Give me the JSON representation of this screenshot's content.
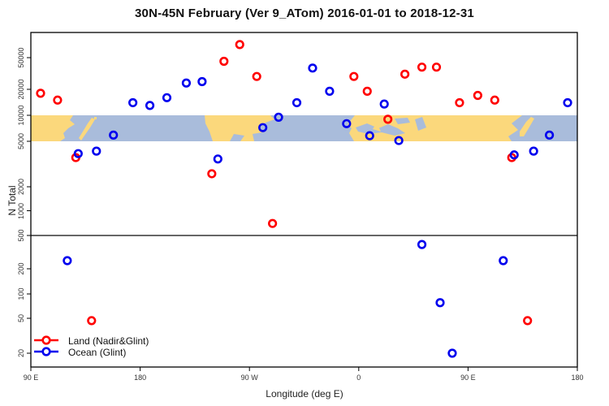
{
  "title": "30N-45N February (Ver 9_ATom)   2016-01-01 to 2018-12-31",
  "chart_data": {
    "type": "scatter",
    "title": "30N-45N February (Ver 9_ATom)   2016-01-01 to 2018-12-31",
    "xlabel": "Longitude (deg E)",
    "ylabel": "N Total",
    "y_scale": "log",
    "x_axis_note": "longitude wraps eastward from 90E around the globe to 180",
    "x_ticks": [
      {
        "value": 90,
        "label": "90 E"
      },
      {
        "value": 180,
        "label": "180"
      },
      {
        "value": 270,
        "label": "90 W"
      },
      {
        "value": 360,
        "label": "0"
      },
      {
        "value": 450,
        "label": "90 E"
      },
      {
        "value": 540,
        "label": "180"
      }
    ],
    "y_ticks": [
      {
        "value": 50000,
        "label": "50000"
      },
      {
        "value": 20000,
        "label": "20000"
      },
      {
        "value": 10000,
        "label": "10000"
      },
      {
        "value": 5000,
        "label": "5000"
      },
      {
        "value": 2000,
        "label": "2000"
      },
      {
        "value": 1000,
        "label": "1000"
      },
      {
        "value": 500,
        "label": "500"
      },
      {
        "value": 200,
        "label": "200"
      },
      {
        "value": 100,
        "label": "100"
      },
      {
        "value": 50,
        "label": "50"
      },
      {
        "value": 20,
        "label": "20"
      }
    ],
    "reference_line_value": 500,
    "map_band": {
      "description": "world-map strip of the 30N-45N latitude band drawn between N=5000 and N=10000",
      "y_min": 5000,
      "y_max": 10000,
      "land_color": "#FBD87C",
      "ocean_color": "#A9BCDB"
    },
    "legend_position": "bottom-left",
    "series": [
      {
        "name": "Land (Nadir&Glint)",
        "color": "#FF0000",
        "points": [
          {
            "x": 98,
            "y": 18000
          },
          {
            "x": 112,
            "y": 15000
          },
          {
            "x": 127,
            "y": 3600
          },
          {
            "x": 140,
            "y": 47
          },
          {
            "x": 239,
            "y": 2600
          },
          {
            "x": 249,
            "y": 45000
          },
          {
            "x": 262,
            "y": 73000
          },
          {
            "x": 276,
            "y": 29000
          },
          {
            "x": 289,
            "y": 700
          },
          {
            "x": 356,
            "y": 29000
          },
          {
            "x": 367,
            "y": 19000
          },
          {
            "x": 384,
            "y": 9000
          },
          {
            "x": 398,
            "y": 31000
          },
          {
            "x": 412,
            "y": 38000
          },
          {
            "x": 424,
            "y": 38000
          },
          {
            "x": 443,
            "y": 14000
          },
          {
            "x": 458,
            "y": 17000
          },
          {
            "x": 472,
            "y": 15000
          },
          {
            "x": 486,
            "y": 3600
          },
          {
            "x": 499,
            "y": 47
          }
        ]
      },
      {
        "name": "Ocean (Glint)",
        "color": "#0000EE",
        "points": [
          {
            "x": 120,
            "y": 250
          },
          {
            "x": 129,
            "y": 3900
          },
          {
            "x": 144,
            "y": 4100
          },
          {
            "x": 158,
            "y": 5900
          },
          {
            "x": 174,
            "y": 14000
          },
          {
            "x": 188,
            "y": 13000
          },
          {
            "x": 202,
            "y": 16000
          },
          {
            "x": 218,
            "y": 24000
          },
          {
            "x": 231,
            "y": 25000
          },
          {
            "x": 244,
            "y": 3500
          },
          {
            "x": 281,
            "y": 7200
          },
          {
            "x": 294,
            "y": 9500
          },
          {
            "x": 309,
            "y": 14000
          },
          {
            "x": 322,
            "y": 37000
          },
          {
            "x": 336,
            "y": 19000
          },
          {
            "x": 350,
            "y": 8000
          },
          {
            "x": 369,
            "y": 5800
          },
          {
            "x": 381,
            "y": 13500
          },
          {
            "x": 393,
            "y": 5100
          },
          {
            "x": 412,
            "y": 390
          },
          {
            "x": 427,
            "y": 78
          },
          {
            "x": 437,
            "y": 20
          },
          {
            "x": 479,
            "y": 250
          },
          {
            "x": 488,
            "y": 3800
          },
          {
            "x": 504,
            "y": 4100
          },
          {
            "x": 517,
            "y": 5900
          },
          {
            "x": 532,
            "y": 14000
          }
        ]
      }
    ]
  },
  "legend": {
    "land_label": "Land (Nadir&Glint)",
    "ocean_label": "Ocean (Glint)"
  }
}
